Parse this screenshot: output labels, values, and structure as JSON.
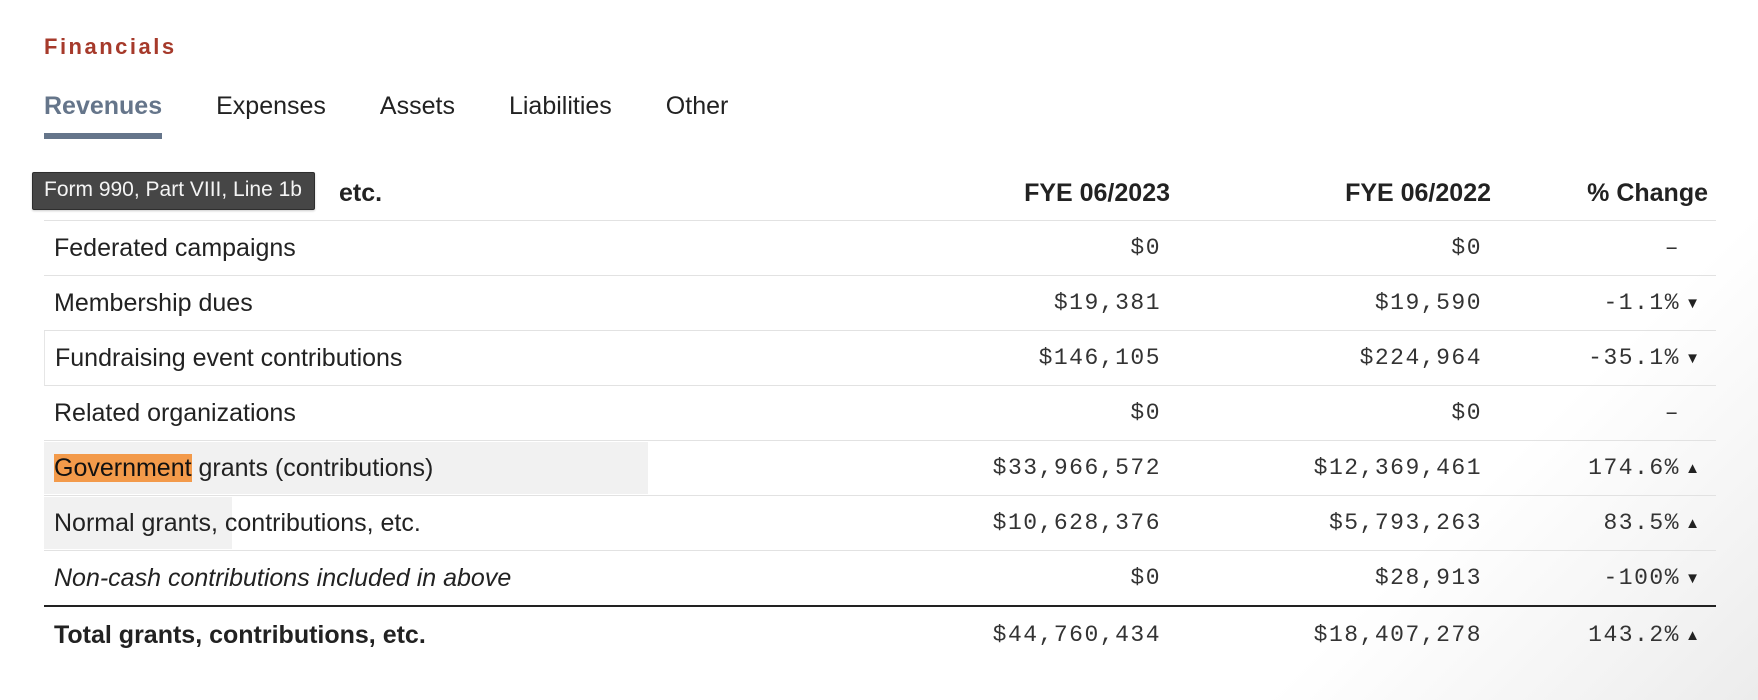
{
  "section_title": "Financials",
  "tabs": [
    {
      "label": "Revenues",
      "active": true
    },
    {
      "label": "Expenses",
      "active": false
    },
    {
      "label": "Assets",
      "active": false
    },
    {
      "label": "Liabilities",
      "active": false
    },
    {
      "label": "Other",
      "active": false
    }
  ],
  "tooltip": "Form 990, Part VIII, Line 1b",
  "table": {
    "header_label_visible_tail": "etc.",
    "columns": [
      "FYE 06/2023",
      "FYE 06/2022",
      "% Change"
    ],
    "rows": [
      {
        "label": "Federated campaigns",
        "fy2023": "$0",
        "fy2022": "$0",
        "change": "–",
        "trend": "none"
      },
      {
        "label": "Membership dues",
        "fy2023": "$19,381",
        "fy2022": "$19,590",
        "change": "-1.1%",
        "trend": "down"
      },
      {
        "label": "Fundraising event contributions",
        "fy2023": "$146,105",
        "fy2022": "$224,964",
        "change": "-35.1%",
        "trend": "down"
      },
      {
        "label": "Related organizations",
        "fy2023": "$0",
        "fy2022": "$0",
        "change": "–",
        "trend": "none"
      },
      {
        "label_highlight": "Government",
        "label_rest": " grants (contributions)",
        "fy2023": "$33,966,572",
        "fy2022": "$12,369,461",
        "change": "174.6%",
        "trend": "up"
      },
      {
        "label": "Normal grants, contributions, etc.",
        "fy2023": "$10,628,376",
        "fy2022": "$5,793,263",
        "change": "83.5%",
        "trend": "up"
      },
      {
        "label": "Non-cash contributions included in above",
        "fy2023": "$0",
        "fy2022": "$28,913",
        "change": "-100%",
        "trend": "down"
      }
    ],
    "total": {
      "label": "Total grants, contributions, etc.",
      "fy2023": "$44,760,434",
      "fy2022": "$18,407,278",
      "change": "143.2%",
      "trend": "up"
    }
  },
  "icons": {
    "up": "caret-up-icon ▲",
    "down": "caret-down-icon ▼"
  },
  "colors": {
    "section_title": "#a63a2b",
    "active_tab": "#65758a",
    "highlight": "#f39a4a",
    "tooltip_bg": "#464646"
  }
}
